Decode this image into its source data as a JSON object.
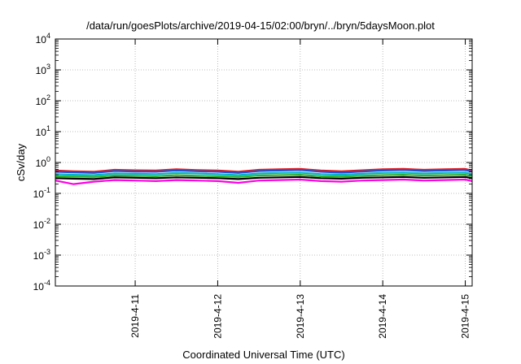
{
  "chart_data": {
    "type": "line",
    "title": "/data/run/goesPlots/archive/2019-04-15/02:00/bryn/../bryn/5daysMoon.plot",
    "xlabel": "Coordinated Universal Time (UTC)",
    "ylabel": "cSv/day",
    "yscale": "log",
    "ylim": [
      0.0001,
      10000
    ],
    "xlim": [
      "2019-04-10T00:47",
      "2019-04-15T02:00"
    ],
    "grid": true,
    "y_ticks": [
      {
        "value": 0.0001,
        "base": "10",
        "exp": "-4"
      },
      {
        "value": 0.001,
        "base": "10",
        "exp": "-3"
      },
      {
        "value": 0.01,
        "base": "10",
        "exp": "-2"
      },
      {
        "value": 0.1,
        "base": "10",
        "exp": "-1"
      },
      {
        "value": 1,
        "base": "10",
        "exp": "0"
      },
      {
        "value": 10,
        "base": "10",
        "exp": "1"
      },
      {
        "value": 100,
        "base": "10",
        "exp": "2"
      },
      {
        "value": 1000,
        "base": "10",
        "exp": "3"
      },
      {
        "value": 10000,
        "base": "10",
        "exp": "4"
      }
    ],
    "x_ticks": [
      {
        "value": "2019-04-11T00:00",
        "label": "2019-4-11"
      },
      {
        "value": "2019-04-12T00:00",
        "label": "2019-4-12"
      },
      {
        "value": "2019-04-13T00:00",
        "label": "2019-4-13"
      },
      {
        "value": "2019-04-14T00:00",
        "label": "2019-4-14"
      },
      {
        "value": "2019-04-15T00:00",
        "label": "2019-4-15"
      }
    ],
    "x": [
      "2019-04-10T00:47",
      "2019-04-10T06:00",
      "2019-04-10T12:00",
      "2019-04-10T18:00",
      "2019-04-11T00:00",
      "2019-04-11T06:00",
      "2019-04-11T12:00",
      "2019-04-11T18:00",
      "2019-04-12T00:00",
      "2019-04-12T06:00",
      "2019-04-12T12:00",
      "2019-04-12T18:00",
      "2019-04-13T00:00",
      "2019-04-13T06:00",
      "2019-04-13T12:00",
      "2019-04-13T18:00",
      "2019-04-14T00:00",
      "2019-04-14T06:00",
      "2019-04-14T12:00",
      "2019-04-14T18:00",
      "2019-04-15T00:00",
      "2019-04-15T02:00"
    ],
    "series": [
      {
        "color": "#e41a1c",
        "values": [
          0.55,
          0.52,
          0.5,
          0.58,
          0.56,
          0.55,
          0.6,
          0.57,
          0.55,
          0.5,
          0.58,
          0.6,
          0.62,
          0.55,
          0.52,
          0.56,
          0.6,
          0.62,
          0.58,
          0.6,
          0.62,
          0.55
        ]
      },
      {
        "color": "#1f4fd6",
        "values": [
          0.5,
          0.48,
          0.46,
          0.53,
          0.51,
          0.5,
          0.55,
          0.52,
          0.5,
          0.46,
          0.53,
          0.55,
          0.57,
          0.5,
          0.47,
          0.51,
          0.55,
          0.57,
          0.53,
          0.55,
          0.57,
          0.5
        ]
      },
      {
        "color": "#00b4c8",
        "values": [
          0.42,
          0.4,
          0.39,
          0.44,
          0.43,
          0.42,
          0.46,
          0.44,
          0.42,
          0.39,
          0.44,
          0.46,
          0.47,
          0.42,
          0.4,
          0.43,
          0.46,
          0.47,
          0.44,
          0.46,
          0.47,
          0.42
        ]
      },
      {
        "color": "#2fae2f",
        "values": [
          0.36,
          0.35,
          0.34,
          0.38,
          0.37,
          0.36,
          0.39,
          0.37,
          0.36,
          0.34,
          0.38,
          0.39,
          0.4,
          0.36,
          0.35,
          0.37,
          0.39,
          0.4,
          0.38,
          0.39,
          0.4,
          0.36
        ]
      },
      {
        "color": "#000000",
        "values": [
          0.31,
          0.3,
          0.29,
          0.33,
          0.32,
          0.31,
          0.33,
          0.32,
          0.31,
          0.29,
          0.32,
          0.33,
          0.34,
          0.31,
          0.3,
          0.32,
          0.33,
          0.34,
          0.32,
          0.33,
          0.34,
          0.31
        ]
      },
      {
        "color": "#ff00e6",
        "values": [
          0.26,
          0.2,
          0.24,
          0.27,
          0.26,
          0.25,
          0.27,
          0.26,
          0.25,
          0.22,
          0.26,
          0.27,
          0.28,
          0.25,
          0.24,
          0.26,
          0.27,
          0.28,
          0.26,
          0.27,
          0.28,
          0.25
        ]
      }
    ]
  }
}
